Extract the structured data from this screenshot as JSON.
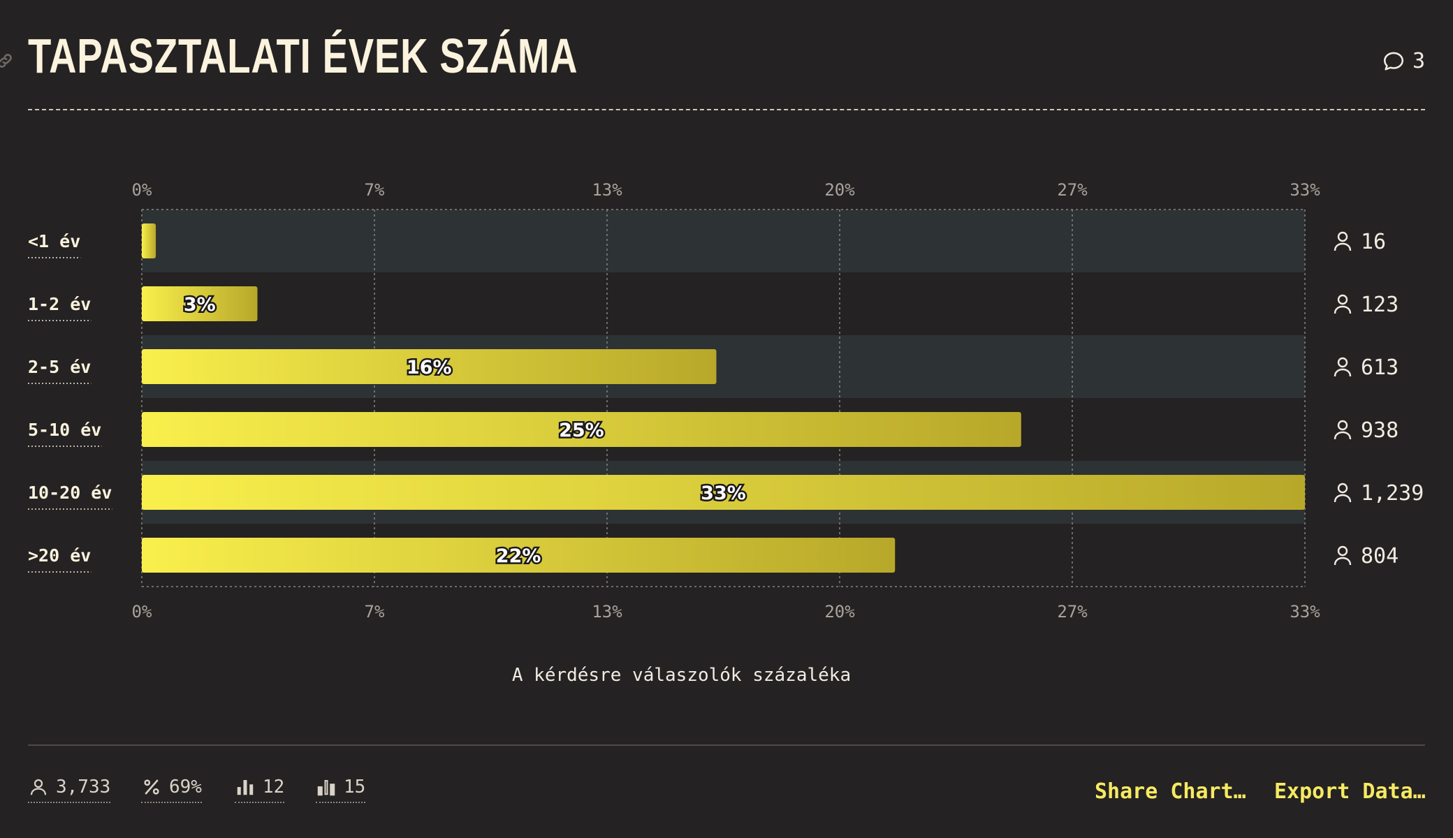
{
  "header": {
    "title": "TAPASZTALATI ÉVEK SZÁMA",
    "comment_count": "3"
  },
  "chart_data": {
    "type": "bar",
    "orientation": "horizontal",
    "title": "TAPASZTALATI ÉVEK SZÁMA",
    "xlabel": "A kérdésre válaszolók százaléka",
    "ylabel": "",
    "categories": [
      "<1 év",
      "1-2 év",
      "2-5 év",
      "5-10 év",
      "10-20 év",
      ">20 év"
    ],
    "values": [
      0.4,
      3.3,
      16.4,
      25.1,
      33.2,
      21.5
    ],
    "value_labels": [
      "",
      "3%",
      "16%",
      "25%",
      "33%",
      "22%"
    ],
    "counts": [
      "16",
      "123",
      "613",
      "938",
      "1,239",
      "804"
    ],
    "x_ticks": [
      0,
      6.64,
      13.28,
      19.92,
      26.56,
      33.2
    ],
    "x_tick_labels": [
      "0%",
      "7%",
      "13%",
      "20%",
      "27%",
      "33%"
    ],
    "xlim": [
      0,
      33.2
    ],
    "grid": true,
    "bar_color_start": "#f9ef4c",
    "bar_color_end": "#b8a82a",
    "band_color": "#2d3235"
  },
  "footer": {
    "respondents": "3,733",
    "percentage": "69%",
    "stat_a": "12",
    "stat_b": "15",
    "share_label": "Share Chart…",
    "export_label": "Export Data…"
  }
}
